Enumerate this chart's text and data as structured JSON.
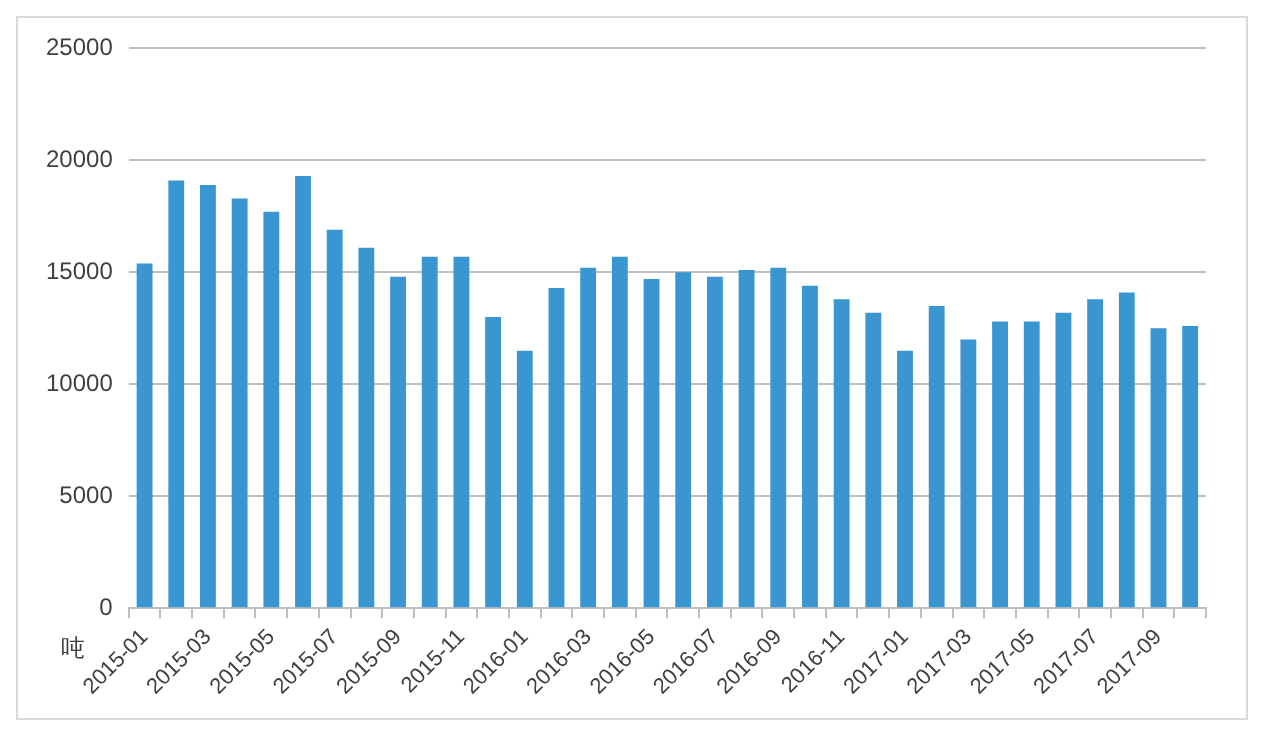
{
  "chart_data": {
    "type": "bar",
    "ylabel": "吨",
    "categories": [
      "2015-01",
      null,
      "2015-03",
      null,
      "2015-05",
      null,
      "2015-07",
      null,
      "2015-09",
      null,
      "2015-11",
      null,
      "2016-01",
      null,
      "2016-03",
      null,
      "2016-05",
      null,
      "2016-07",
      null,
      "2016-09",
      null,
      "2016-11",
      null,
      "2017-01",
      null,
      "2017-03",
      null,
      "2017-05",
      null,
      "2017-07",
      null,
      "2017-09",
      null
    ],
    "values": [
      15400,
      19100,
      18900,
      18300,
      17700,
      19300,
      16900,
      16100,
      14800,
      15700,
      15700,
      13000,
      11500,
      14300,
      15200,
      15700,
      14700,
      15000,
      14800,
      15100,
      15200,
      14400,
      13800,
      13200,
      11500,
      13500,
      12000,
      12800,
      12800,
      13200,
      13800,
      14100,
      12500,
      12600
    ],
    "color": "#3a96d0",
    "ylim": [
      0,
      25000
    ],
    "yticks": [
      0,
      5000,
      10000,
      15000,
      20000,
      25000
    ],
    "grid": "y",
    "legend": false
  }
}
